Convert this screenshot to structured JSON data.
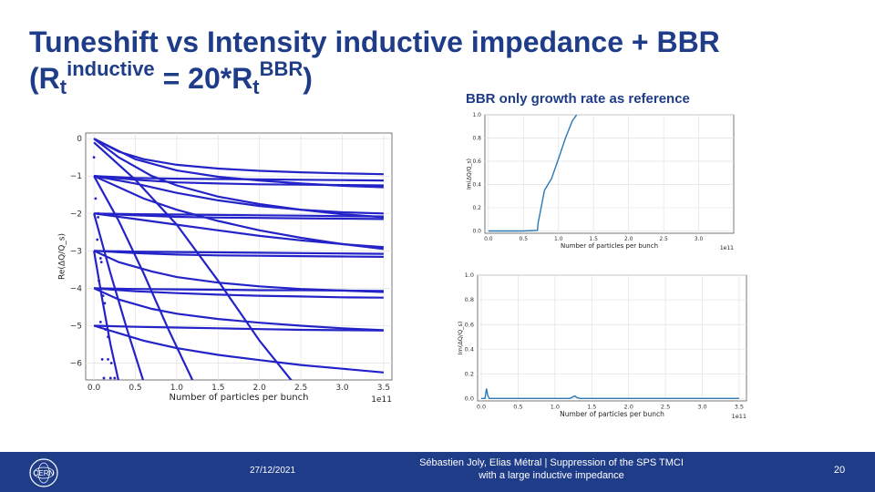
{
  "slide": {
    "title_line1": "Tuneshift vs Intensity inductive impedance + BBR",
    "title_open": "(R",
    "title_sub1": "t",
    "title_sup1": "inductive",
    "title_mid": " = 20*R",
    "title_sub2": "t",
    "title_sup2": "BBR",
    "title_close": ")",
    "subtitle": "BBR only growth rate as reference"
  },
  "footer": {
    "date": "27/12/2021",
    "authors_line1": "Sébastien Joly, Elias Métral | Suppression of the SPS TMCI",
    "authors_line2": "with a large inductive impedance",
    "page_number": "20",
    "logo_text": "CERN"
  },
  "colors": {
    "brand": "#1f3c88",
    "mode_lines": "#2323c8",
    "growth_line": "#2a78b4"
  },
  "chart_data": [
    {
      "id": "tuneshift",
      "type": "line",
      "title": "",
      "xlabel": "Number of particles per bunch",
      "ylabel": "Re(ΔQ/Q_s)",
      "x_exponent": "1e11",
      "xlim": [
        -0.1,
        3.6
      ],
      "ylim": [
        -6.45,
        0.15
      ],
      "xticks": [
        "0.0",
        "0.5",
        "1.0",
        "1.5",
        "2.0",
        "2.5",
        "3.0",
        "3.5"
      ],
      "yticks": [
        "0",
        "−1",
        "−2",
        "−3",
        "−4",
        "−5",
        "−6"
      ],
      "grid": true,
      "series": [
        {
          "name": "m0-a",
          "x": [
            0,
            0.3,
            0.6,
            1,
            1.5,
            2,
            2.5,
            3,
            3.5
          ],
          "y": [
            0,
            -0.35,
            -0.55,
            -0.7,
            -0.8,
            -0.86,
            -0.9,
            -0.93,
            -0.95
          ]
        },
        {
          "name": "m0-b",
          "x": [
            0,
            0.5,
            1,
            1.5,
            2,
            2.5,
            3,
            3.5
          ],
          "y": [
            0,
            -0.55,
            -0.85,
            -1.02,
            -1.12,
            -1.2,
            -1.26,
            -1.3
          ]
        },
        {
          "name": "m0-c",
          "x": [
            0,
            0.3,
            0.7,
            1,
            1.5,
            2,
            2.5,
            3,
            3.5
          ],
          "y": [
            0,
            -0.5,
            -1.0,
            -1.25,
            -1.55,
            -1.75,
            -1.9,
            -2.02,
            -2.1
          ]
        },
        {
          "name": "m-1-a",
          "x": [
            0,
            0.5,
            1,
            1.5,
            2,
            2.5,
            3,
            3.5
          ],
          "y": [
            -1,
            -1.05,
            -1.07,
            -1.08,
            -1.09,
            -1.1,
            -1.11,
            -1.12
          ]
        },
        {
          "name": "m-1-b",
          "x": [
            0,
            0.5,
            1,
            1.5,
            2,
            2.5,
            3,
            3.5
          ],
          "y": [
            -1,
            -1.1,
            -1.17,
            -1.2,
            -1.22,
            -1.23,
            -1.24,
            -1.25
          ]
        },
        {
          "name": "m-1-c",
          "x": [
            0,
            0.5,
            1,
            1.5,
            2,
            2.5,
            3,
            3.5
          ],
          "y": [
            -1,
            -1.2,
            -1.45,
            -1.65,
            -1.8,
            -1.9,
            -1.97,
            -2.0
          ]
        },
        {
          "name": "m-1-d",
          "x": [
            0,
            0.3,
            0.6,
            1,
            1.5,
            2,
            2.5,
            3,
            3.5
          ],
          "y": [
            -1,
            -1.3,
            -1.6,
            -1.9,
            -2.2,
            -2.45,
            -2.65,
            -2.82,
            -2.95
          ]
        },
        {
          "name": "m-2-a",
          "x": [
            0,
            0.5,
            1,
            1.5,
            2,
            2.5,
            3,
            3.5
          ],
          "y": [
            -2,
            -2.02,
            -2.03,
            -2.04,
            -2.05,
            -2.06,
            -2.07,
            -2.08
          ]
        },
        {
          "name": "m-2-b",
          "x": [
            0,
            0.5,
            1,
            1.5,
            2,
            2.5,
            3,
            3.5
          ],
          "y": [
            -2,
            -2.05,
            -2.09,
            -2.11,
            -2.12,
            -2.13,
            -2.14,
            -2.15
          ]
        },
        {
          "name": "m-2-c",
          "x": [
            0,
            0.5,
            1,
            1.5,
            2,
            2.5,
            3,
            3.5
          ],
          "y": [
            -2,
            -2.15,
            -2.3,
            -2.45,
            -2.6,
            -2.72,
            -2.82,
            -2.9
          ]
        },
        {
          "name": "m-3-a",
          "x": [
            0,
            0.5,
            1,
            1.5,
            2,
            2.5,
            3,
            3.5
          ],
          "y": [
            -3,
            -3.02,
            -3.03,
            -3.04,
            -3.05,
            -3.06,
            -3.07,
            -3.08
          ]
        },
        {
          "name": "m-3-b",
          "x": [
            0,
            0.5,
            1,
            1.5,
            2,
            2.5,
            3,
            3.5
          ],
          "y": [
            -3,
            -3.06,
            -3.1,
            -3.12,
            -3.13,
            -3.14,
            -3.15,
            -3.16
          ]
        },
        {
          "name": "m-3-c",
          "x": [
            0,
            0.3,
            0.7,
            1,
            1.5,
            2,
            2.5,
            3,
            3.5
          ],
          "y": [
            -3,
            -3.3,
            -3.55,
            -3.7,
            -3.85,
            -3.95,
            -4.02,
            -4.06,
            -4.1
          ]
        },
        {
          "name": "m-4-a",
          "x": [
            0,
            0.5,
            1,
            1.5,
            2,
            2.5,
            3,
            3.5
          ],
          "y": [
            -4,
            -4.02,
            -4.03,
            -4.04,
            -4.05,
            -4.05,
            -4.06,
            -4.07
          ]
        },
        {
          "name": "m-4-b",
          "x": [
            0,
            0.5,
            1,
            1.5,
            2,
            2.5,
            3,
            3.5
          ],
          "y": [
            -4,
            -4.08,
            -4.13,
            -4.17,
            -4.2,
            -4.22,
            -4.24,
            -4.25
          ]
        },
        {
          "name": "m-4-c",
          "x": [
            0,
            0.3,
            0.7,
            1,
            1.5,
            2,
            2.5,
            3,
            3.5
          ],
          "y": [
            -4,
            -4.3,
            -4.55,
            -4.68,
            -4.82,
            -4.92,
            -5.0,
            -5.07,
            -5.12
          ]
        },
        {
          "name": "m-5-a",
          "x": [
            0,
            0.5,
            1,
            1.5,
            2,
            2.5,
            3,
            3.5
          ],
          "y": [
            -5,
            -5.03,
            -5.05,
            -5.07,
            -5.09,
            -5.11,
            -5.12,
            -5.13
          ]
        },
        {
          "name": "m-5-b",
          "x": [
            0,
            0.3,
            0.6,
            1,
            1.5,
            2,
            2.5,
            3,
            3.5
          ],
          "y": [
            -5,
            -5.2,
            -5.4,
            -5.6,
            -5.78,
            -5.92,
            -6.05,
            -6.15,
            -6.25
          ]
        },
        {
          "name": "m-0-drop",
          "x": [
            0,
            0.5,
            1,
            1.5,
            2,
            2.4
          ],
          "y": [
            -0.1,
            -1.1,
            -2.3,
            -3.8,
            -5.4,
            -6.5
          ]
        },
        {
          "name": "m-1-drop",
          "x": [
            0,
            0.3,
            0.6,
            0.9,
            1.2
          ],
          "y": [
            -1,
            -2.2,
            -3.6,
            -5.1,
            -6.5
          ]
        },
        {
          "name": "m-2-drop",
          "x": [
            0,
            0.2,
            0.4,
            0.6
          ],
          "y": [
            -2,
            -3.6,
            -5.1,
            -6.5
          ]
        },
        {
          "name": "m-3-drop",
          "x": [
            0,
            0.1,
            0.2,
            0.3
          ],
          "y": [
            -3,
            -4.3,
            -5.5,
            -6.5
          ]
        }
      ],
      "scatter": [
        {
          "name": "dots-a",
          "x": [
            0,
            0.02,
            0.04,
            0.06,
            0.08,
            0.1,
            0.12
          ],
          "y": [
            -0.5,
            -1.6,
            -2.7,
            -3.8,
            -4.9,
            -5.9,
            -6.4
          ]
        },
        {
          "name": "dots-b",
          "x": [
            0.02,
            0.05,
            0.08,
            0.11,
            0.14,
            0.17,
            0.2
          ],
          "y": [
            -1.0,
            -2.1,
            -3.2,
            -4.2,
            -5.1,
            -5.9,
            -6.4
          ]
        },
        {
          "name": "dots-c",
          "x": [
            0.05,
            0.09,
            0.13,
            0.17,
            0.21,
            0.25
          ],
          "y": [
            -2.0,
            -3.3,
            -4.4,
            -5.3,
            -6.0,
            -6.4
          ]
        }
      ]
    },
    {
      "id": "growth-top",
      "type": "line",
      "xlabel": "Number of particles per bunch",
      "ylabel": "Im(ΔQ/Q_s)",
      "x_exponent": "1e11",
      "xlim": [
        -0.05,
        3.5
      ],
      "ylim": [
        -0.02,
        1.0
      ],
      "xticks": [
        "0.0",
        "0.5",
        "1.0",
        "1.5",
        "2.0",
        "2.5",
        "3.0"
      ],
      "yticks": [
        "0.0",
        "0.2",
        "0.4",
        "0.6",
        "0.8",
        "1.0"
      ],
      "grid": true,
      "series": [
        {
          "name": "growth",
          "x": [
            0,
            0.5,
            0.7,
            0.71,
            0.72,
            0.8,
            0.9,
            1.0,
            1.1,
            1.2,
            1.26
          ],
          "y": [
            0,
            0,
            0.005,
            0.07,
            0.1,
            0.35,
            0.45,
            0.62,
            0.8,
            0.95,
            1.0
          ]
        }
      ]
    },
    {
      "id": "growth-bottom",
      "type": "line",
      "xlabel": "Number of particles per bunch",
      "ylabel": "Im(ΔQ/Q_s)",
      "x_exponent": "1e11",
      "xlim": [
        -0.05,
        3.6
      ],
      "ylim": [
        -0.02,
        1.0
      ],
      "xticks": [
        "0.0",
        "0.5",
        "1.0",
        "1.5",
        "2.0",
        "2.5",
        "3.0",
        "3.5"
      ],
      "yticks": [
        "0.0",
        "0.2",
        "0.4",
        "0.6",
        "0.8",
        "1.0"
      ],
      "grid": true,
      "series": [
        {
          "name": "growth",
          "x": [
            0,
            0.05,
            0.07,
            0.09,
            0.11,
            0.2,
            1.2,
            1.27,
            1.3,
            1.35,
            3.5
          ],
          "y": [
            0,
            0,
            0.08,
            0.02,
            0,
            0,
            0,
            0.02,
            0.005,
            0,
            0
          ]
        }
      ]
    }
  ]
}
